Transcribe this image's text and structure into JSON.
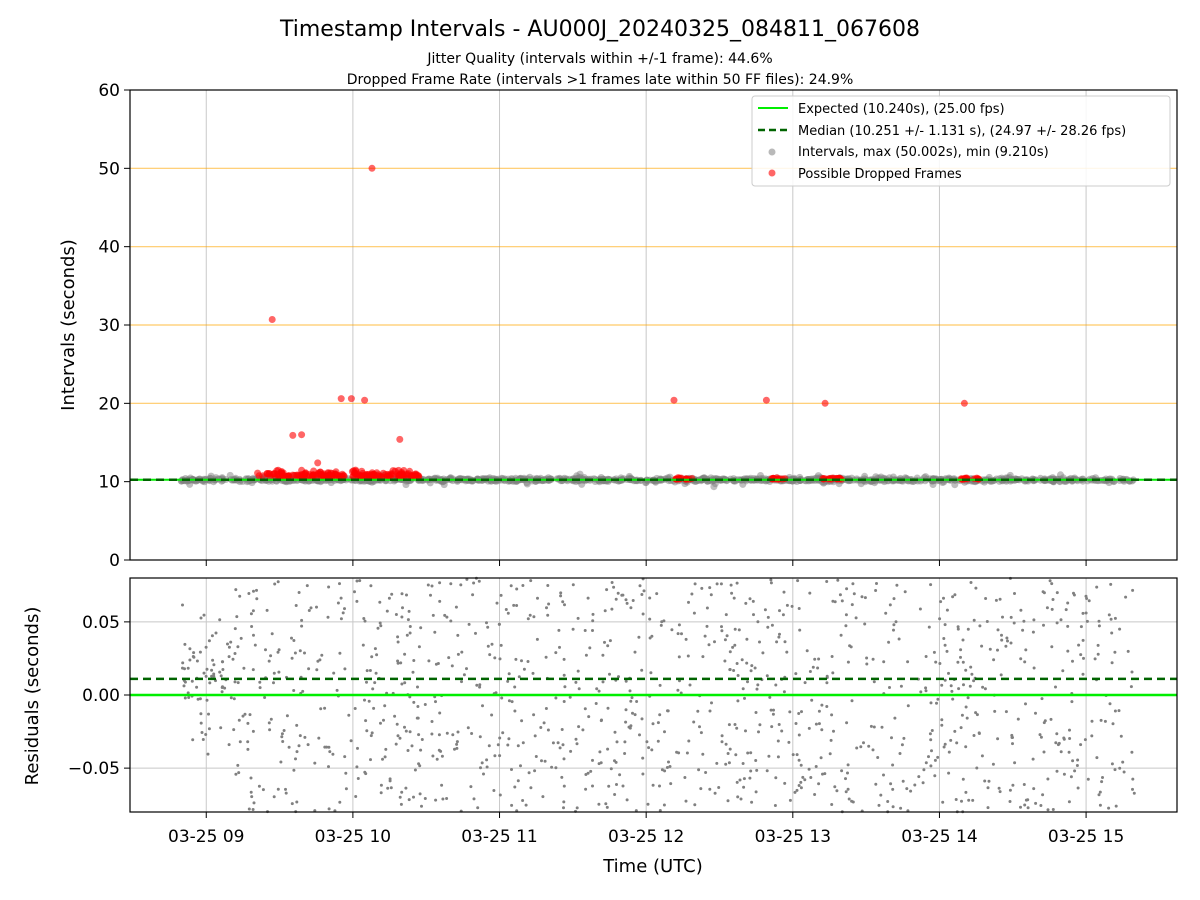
{
  "figure": {
    "title": "Timestamp Intervals - AU000J_20240325_084811_067608",
    "subtitle_1": "Jitter Quality (intervals within +/-1 frame): 44.6%",
    "subtitle_2": "Dropped Frame Rate (intervals >1 frames late within 50 FF files): 24.9%"
  },
  "colors": {
    "expected": "#00ee00",
    "median": "#006400",
    "intervals": "#808080",
    "dropped": "#ff0000",
    "threshold_lines": "#ffa500",
    "grid": "#c8c8c8"
  },
  "chart_data": [
    {
      "type": "scatter",
      "panel": "intervals",
      "title": "",
      "xlabel": "",
      "ylabel": "Intervals (seconds)",
      "ylim": [
        0,
        60
      ],
      "yticks": [
        "0",
        "10",
        "20",
        "30",
        "40",
        "50",
        "60"
      ],
      "ytick_values": [
        0,
        10,
        20,
        30,
        40,
        50,
        60
      ],
      "xlim_hours": [
        8.48,
        15.62
      ],
      "xticks_hours": [
        9,
        10,
        11,
        12,
        13,
        14,
        15
      ],
      "threshold_lines_y": [
        20,
        30,
        40,
        50
      ],
      "expected_y": 10.24,
      "median_y": 10.251,
      "grid": "vertical lines at x ticks",
      "legend_position": "top-right",
      "legend": [
        {
          "label": "Expected (10.240s), (25.00 fps)",
          "marker": "line"
        },
        {
          "label": "Median (10.251 +/- 1.131 s), (24.97 +/- 28.26 fps)",
          "marker": "dashed"
        },
        {
          "label": "Intervals, max (50.002s), min (9.210s)",
          "marker": "grey-dot"
        },
        {
          "label": "Possible Dropped Frames",
          "marker": "red-dot"
        }
      ],
      "interval_range": {
        "start_hour": 8.83,
        "end_hour": 15.33,
        "typical_y": 10.24,
        "max": 50.002,
        "min": 9.21
      },
      "dropped_outliers": [
        {
          "x": 9.45,
          "y": 30.7
        },
        {
          "x": 9.59,
          "y": 15.9
        },
        {
          "x": 9.65,
          "y": 16.0
        },
        {
          "x": 9.76,
          "y": 12.4
        },
        {
          "x": 9.92,
          "y": 20.6
        },
        {
          "x": 9.99,
          "y": 20.6
        },
        {
          "x": 10.08,
          "y": 20.4
        },
        {
          "x": 10.13,
          "y": 50.0
        },
        {
          "x": 10.32,
          "y": 15.4
        },
        {
          "x": 12.19,
          "y": 20.4
        },
        {
          "x": 12.82,
          "y": 20.4
        },
        {
          "x": 13.22,
          "y": 20.0
        },
        {
          "x": 14.17,
          "y": 20.0
        }
      ],
      "dropped_clusters": [
        {
          "from": 9.35,
          "to": 10.45,
          "y": 10.6
        },
        {
          "from": 12.2,
          "to": 12.32,
          "y": 10.3
        },
        {
          "from": 12.85,
          "to": 12.95,
          "y": 10.3
        },
        {
          "from": 13.2,
          "to": 13.35,
          "y": 10.3
        },
        {
          "from": 14.15,
          "to": 14.27,
          "y": 10.3
        }
      ]
    },
    {
      "type": "scatter",
      "panel": "residuals",
      "title": "",
      "xlabel": "Time (UTC)",
      "ylabel": "Residuals (seconds)",
      "ylim": [
        -0.08,
        0.08
      ],
      "yticks": [
        "−0.05",
        "0.00",
        "0.05"
      ],
      "ytick_values": [
        -0.05,
        0.0,
        0.05
      ],
      "xticks": [
        "03-25 09",
        "03-25 10",
        "03-25 11",
        "03-25 12",
        "03-25 13",
        "03-25 14",
        "03-25 15"
      ],
      "xticks_hours": [
        9,
        10,
        11,
        12,
        13,
        14,
        15
      ],
      "expected_y": 0.0,
      "median_y": 0.011,
      "grid": "both axes",
      "point_spread": {
        "start_hour": 8.83,
        "end_hour": 15.33,
        "min": -0.08,
        "max": 0.08
      }
    }
  ]
}
